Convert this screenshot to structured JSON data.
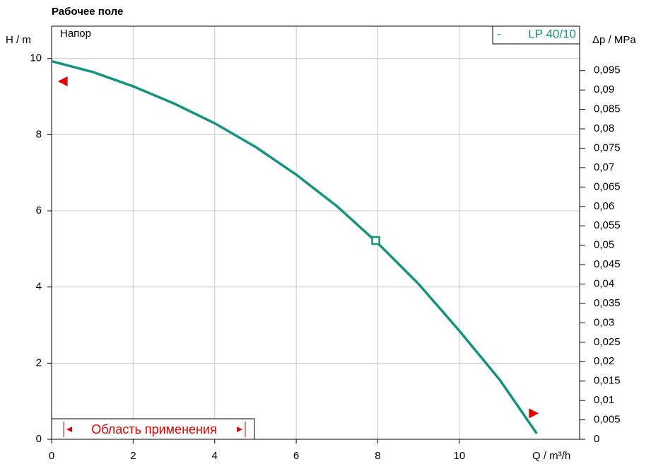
{
  "chart_data": {
    "type": "line",
    "title": "Рабочее поле",
    "x_label": "Q / m³/h",
    "y_label": "H / m",
    "y2_label": "Δp / MPa",
    "annotation": "Напор",
    "legend_marker": "-",
    "range_label": "Область применения",
    "x": [
      0,
      1,
      2,
      3,
      4,
      5,
      6,
      7,
      8,
      9,
      10,
      11,
      11.9
    ],
    "series": [
      {
        "name": "LP 40/10",
        "color": "#13947c",
        "values": [
          9.93,
          9.65,
          9.27,
          8.82,
          8.3,
          7.68,
          6.95,
          6.12,
          5.15,
          4.08,
          2.85,
          1.55,
          0.15
        ]
      }
    ],
    "operating_point": {
      "x": 7.95,
      "y": 5.22
    },
    "range_markers": [
      {
        "x": 0.15,
        "y": 9.4
      },
      {
        "x": 11.95,
        "y": 0.68
      }
    ],
    "xlim": [
      0,
      12.95
    ],
    "ylim": [
      0,
      10.85
    ],
    "y2lim": [
      0,
      0.10644
    ],
    "xticks": [
      0,
      2,
      4,
      6,
      8,
      10
    ],
    "yticks": [
      0,
      2,
      4,
      6,
      8,
      10
    ],
    "y2ticks": [
      0,
      {
        "value": 0.005,
        "label": "0,005"
      },
      {
        "value": 0.01,
        "label": "0,01"
      },
      {
        "value": 0.015,
        "label": "0,015"
      },
      {
        "value": 0.02,
        "label": "0,02"
      },
      {
        "value": 0.025,
        "label": "0,025"
      },
      {
        "value": 0.03,
        "label": "0,03"
      },
      {
        "value": 0.035,
        "label": "0,035"
      },
      {
        "value": 0.04,
        "label": "0,04"
      },
      {
        "value": 0.045,
        "label": "0,045"
      },
      {
        "value": 0.05,
        "label": "0,05"
      },
      {
        "value": 0.055,
        "label": "0,055"
      },
      {
        "value": 0.06,
        "label": "0,06"
      },
      {
        "value": 0.065,
        "label": "0,065"
      },
      {
        "value": 0.07,
        "label": "0,07"
      },
      {
        "value": 0.075,
        "label": "0,075"
      },
      {
        "value": 0.08,
        "label": "0,08"
      },
      {
        "value": 0.085,
        "label": "0,085"
      },
      {
        "value": 0.09,
        "label": "0,09"
      },
      {
        "value": 0.095,
        "label": "0,095"
      }
    ],
    "grid": true
  }
}
